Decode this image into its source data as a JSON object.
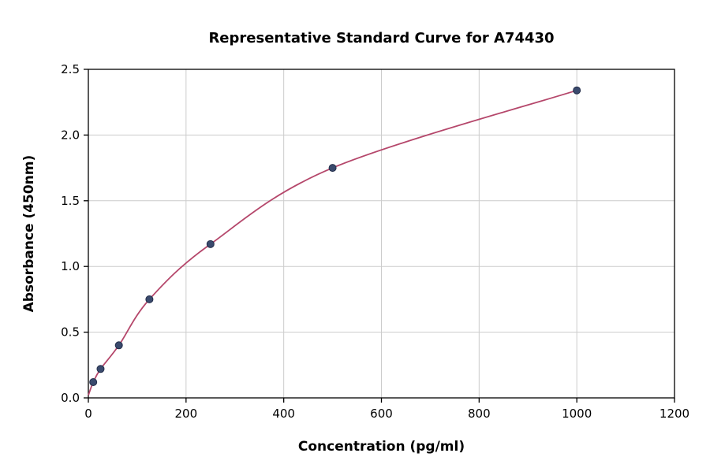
{
  "chart_data": {
    "type": "scatter",
    "title": "Representative Standard Curve for A74430",
    "xlabel": "Concentration (pg/ml)",
    "ylabel": "Absorbance (450nm)",
    "xlim": [
      0,
      1200
    ],
    "ylim": [
      0,
      2.5
    ],
    "x_ticks": [
      0,
      200,
      400,
      600,
      800,
      1000,
      1200
    ],
    "x_tick_labels": [
      "0",
      "200",
      "400",
      "600",
      "800",
      "1000",
      "1200"
    ],
    "y_ticks": [
      0,
      0.5,
      1.0,
      1.5,
      2.0,
      2.5
    ],
    "y_tick_labels": [
      "0.0",
      "0.5",
      "1.0",
      "1.5",
      "2.0",
      "2.5"
    ],
    "grid": true,
    "legend": "none",
    "points": {
      "x": [
        10,
        25,
        62.5,
        125,
        250,
        500,
        1000
      ],
      "y": [
        0.12,
        0.22,
        0.4,
        0.75,
        1.17,
        1.75,
        2.34
      ]
    },
    "curve_start": {
      "x": 0,
      "y": 0.02
    },
    "colors": {
      "curve": "#b5476b",
      "marker_fill": "#3a4a6d",
      "marker_edge": "#232e4a",
      "grid": "#cccccc",
      "axis": "#000000",
      "background": "#ffffff"
    }
  }
}
